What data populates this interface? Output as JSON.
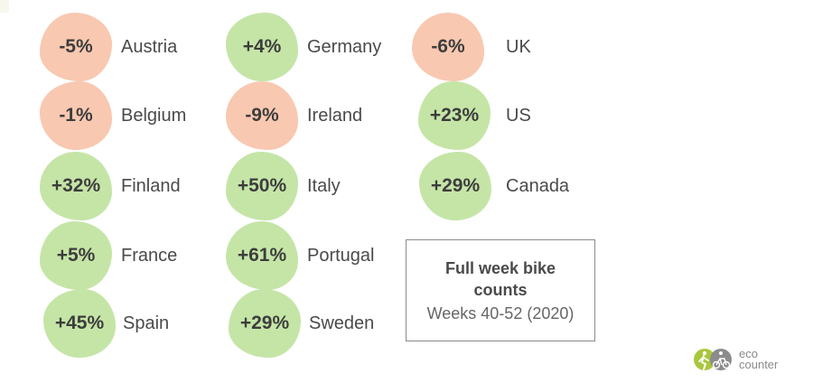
{
  "countries": [
    {
      "value": "-5%",
      "name": "Austria",
      "trend": "negative"
    },
    {
      "value": "-1%",
      "name": "Belgium",
      "trend": "negative"
    },
    {
      "value": "+32%",
      "name": "Finland",
      "trend": "positive"
    },
    {
      "value": "+5%",
      "name": "France",
      "trend": "positive"
    },
    {
      "value": "+45%",
      "name": "Spain",
      "trend": "positive"
    },
    {
      "value": "+4%",
      "name": "Germany",
      "trend": "positive"
    },
    {
      "value": "-9%",
      "name": "Ireland",
      "trend": "negative"
    },
    {
      "value": "+50%",
      "name": "Italy",
      "trend": "positive"
    },
    {
      "value": "+61%",
      "name": "Portugal",
      "trend": "positive"
    },
    {
      "value": "+29%",
      "name": "Sweden",
      "trend": "positive"
    },
    {
      "value": "-6%",
      "name": "UK",
      "trend": "negative"
    },
    {
      "value": "+23%",
      "name": "US",
      "trend": "positive"
    },
    {
      "value": "+29%",
      "name": "Canada",
      "trend": "positive"
    }
  ],
  "info_box": {
    "title": "Full week bike counts",
    "subtitle": "Weeks 40-52 (2020)"
  },
  "logo": {
    "line1": "eco",
    "line2": "counter"
  },
  "colors": {
    "positive": "#c5e5a7",
    "negative": "#f8c8b1",
    "text": "#3d3d3d"
  }
}
